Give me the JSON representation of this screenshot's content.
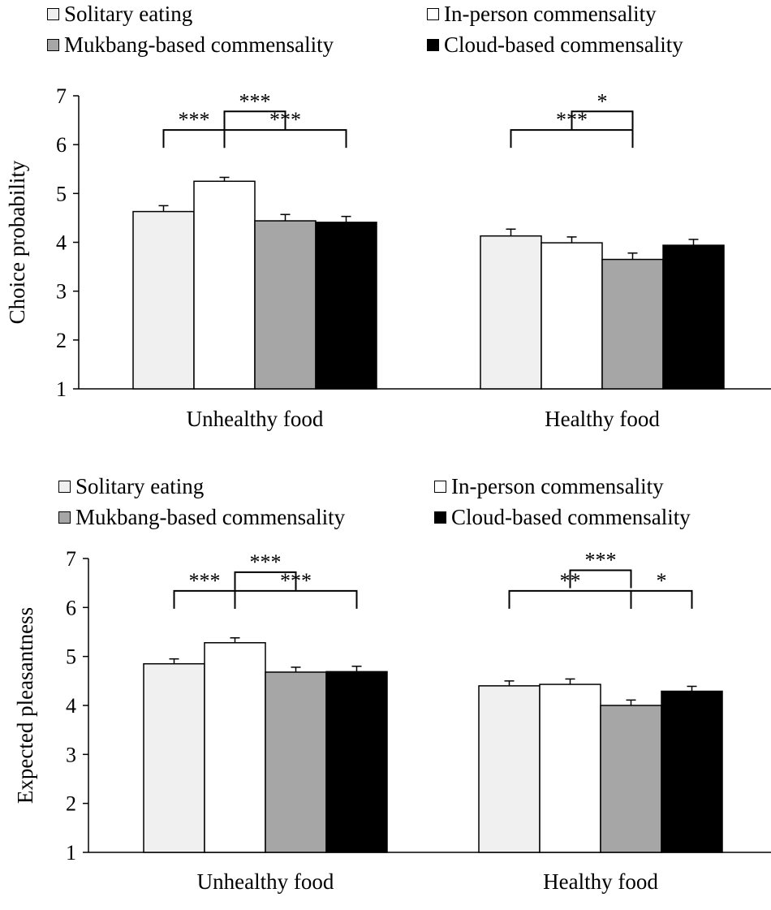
{
  "colors": {
    "Solitary eating": "#f0f0f0",
    "In-person commensality": "#ffffff",
    "Mukbang-based commensality": "#a6a6a6",
    "Cloud-based commensality": "#000000"
  },
  "chart_data": [
    {
      "type": "bar",
      "title": "",
      "xlabel": "",
      "ylabel": "Choice probability",
      "ylim": [
        1,
        7
      ],
      "yticks": [
        "1",
        "2",
        "3",
        "4",
        "5",
        "6",
        "7"
      ],
      "categories": [
        "Unhealthy food",
        "Healthy food"
      ],
      "legend": [
        "Solitary eating",
        "In-person commensality",
        "Mukbang-based commensality",
        "Cloud-based commensality"
      ],
      "series": [
        {
          "name": "Solitary eating",
          "values": [
            4.63,
            4.13
          ],
          "errors": [
            0.12,
            0.14
          ]
        },
        {
          "name": "In-person commensality",
          "values": [
            5.25,
            3.99
          ],
          "errors": [
            0.08,
            0.12
          ]
        },
        {
          "name": "Mukbang-based commensality",
          "values": [
            4.44,
            3.65
          ],
          "errors": [
            0.13,
            0.13
          ]
        },
        {
          "name": "Cloud-based commensality",
          "values": [
            4.41,
            3.94
          ],
          "errors": [
            0.12,
            0.12
          ]
        }
      ],
      "significance": [
        {
          "category": 0,
          "from": 0,
          "to": 1,
          "level": 6.3,
          "label": "***"
        },
        {
          "category": 0,
          "from": 1,
          "to": 2,
          "level": 6.68,
          "label": "***"
        },
        {
          "category": 0,
          "from": 1,
          "to": 3,
          "level": 6.3,
          "label": "***"
        },
        {
          "category": 1,
          "from": 0,
          "to": 2,
          "level": 6.3,
          "label": "***"
        },
        {
          "category": 1,
          "from": 1,
          "to": 2,
          "level": 6.68,
          "label": "*"
        }
      ]
    },
    {
      "type": "bar",
      "title": "",
      "xlabel": "",
      "ylabel": "Expected pleasantness",
      "ylim": [
        1,
        7
      ],
      "yticks": [
        "1",
        "2",
        "3",
        "4",
        "5",
        "6",
        "7"
      ],
      "categories": [
        "Unhealthy food",
        "Healthy food"
      ],
      "legend": [
        "Solitary eating",
        "In-person commensality",
        "Mukbang-based commensality",
        "Cloud-based commensality"
      ],
      "series": [
        {
          "name": "Solitary eating",
          "values": [
            4.85,
            4.4
          ],
          "errors": [
            0.1,
            0.1
          ]
        },
        {
          "name": "In-person commensality",
          "values": [
            5.28,
            4.43
          ],
          "errors": [
            0.1,
            0.11
          ]
        },
        {
          "name": "Mukbang-based commensality",
          "values": [
            4.68,
            4.0
          ],
          "errors": [
            0.1,
            0.11
          ]
        },
        {
          "name": "Cloud-based commensality",
          "values": [
            4.69,
            4.29
          ],
          "errors": [
            0.11,
            0.1
          ]
        }
      ],
      "significance": [
        {
          "category": 0,
          "from": 0,
          "to": 1,
          "level": 6.34,
          "label": "***"
        },
        {
          "category": 0,
          "from": 1,
          "to": 2,
          "level": 6.72,
          "label": "***"
        },
        {
          "category": 0,
          "from": 1,
          "to": 3,
          "level": 6.34,
          "label": "***"
        },
        {
          "category": 1,
          "from": 0,
          "to": 2,
          "level": 6.34,
          "label": "**"
        },
        {
          "category": 1,
          "from": 1,
          "to": 2,
          "level": 6.76,
          "label": "***"
        },
        {
          "category": 1,
          "from": 2,
          "to": 3,
          "level": 6.34,
          "label": "*"
        }
      ]
    }
  ]
}
